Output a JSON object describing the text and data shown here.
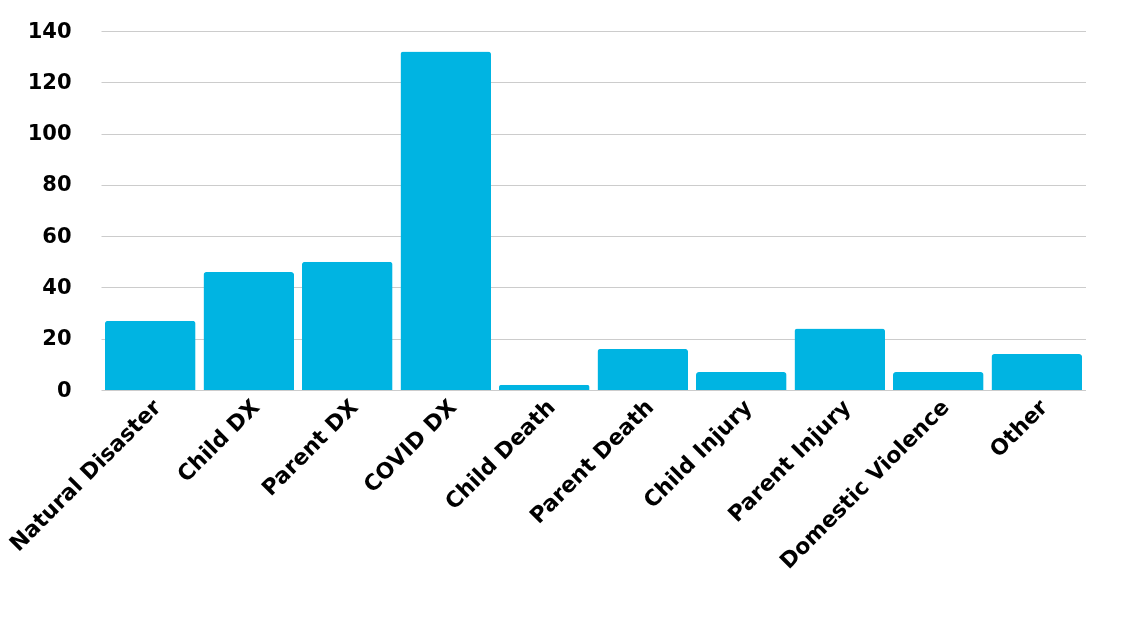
{
  "chart_data": {
    "type": "bar",
    "categories": [
      "Natural Disaster",
      "Child DX",
      "Parent DX",
      "COVID DX",
      "Child Death",
      "Parent Death",
      "Child Injury",
      "Parent Injury",
      "Domestic Violence",
      "Other"
    ],
    "values": [
      27,
      46,
      50,
      132,
      2,
      16,
      7,
      24,
      7,
      14
    ],
    "color": "#00b4e2",
    "ylim": [
      0,
      140
    ],
    "yticks": [
      0,
      20,
      40,
      60,
      80,
      100,
      120,
      140
    ],
    "grid": "y"
  }
}
